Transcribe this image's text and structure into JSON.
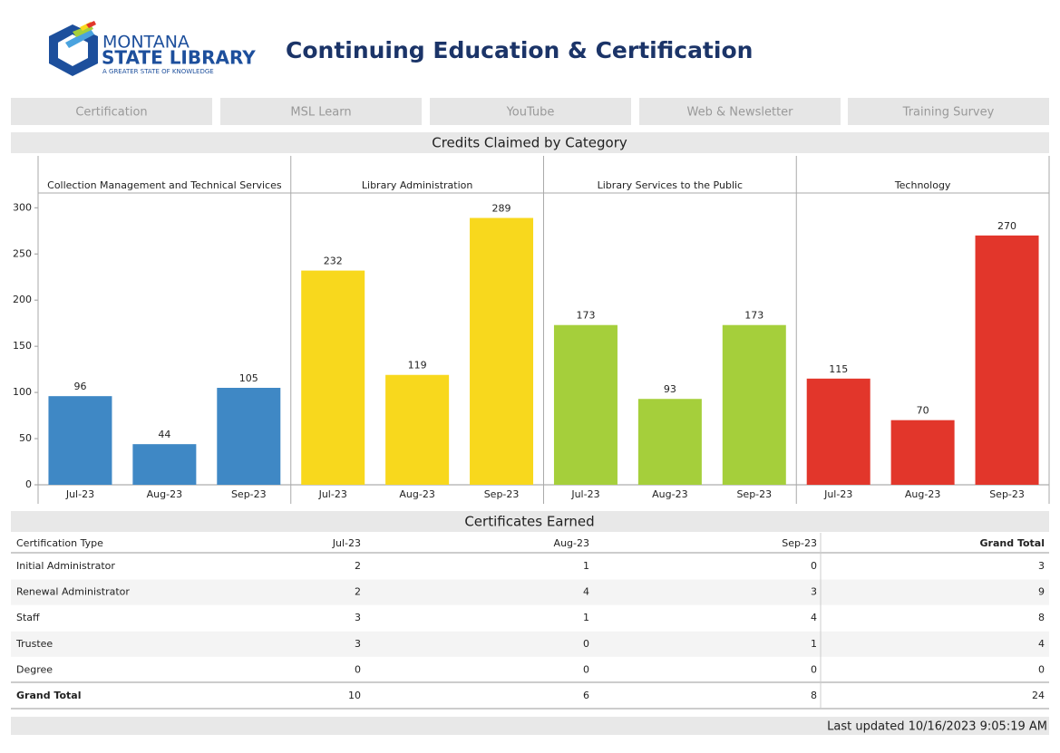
{
  "header": {
    "logo_line1": "MONTANA",
    "logo_line2": "STATE LIBRARY",
    "logo_tagline": "A GREATER STATE OF KNOWLEDGE",
    "title": "Continuing Education & Certification"
  },
  "nav": {
    "items": [
      "Certification",
      "MSL Learn",
      "YouTube",
      "Web & Newsletter",
      "Training Survey"
    ]
  },
  "chart_data": {
    "type": "bar",
    "title": "Credits Claimed by Category",
    "panels": [
      {
        "name": "Collection Management and Technical Services",
        "color": "#3f88c5",
        "categories": [
          "Jul-23",
          "Aug-23",
          "Sep-23"
        ],
        "values": [
          96,
          44,
          105
        ]
      },
      {
        "name": "Library Administration",
        "color": "#f8d81d",
        "categories": [
          "Jul-23",
          "Aug-23",
          "Sep-23"
        ],
        "values": [
          232,
          119,
          289
        ]
      },
      {
        "name": "Library Services to the Public",
        "color": "#a5cf3b",
        "categories": [
          "Jul-23",
          "Aug-23",
          "Sep-23"
        ],
        "values": [
          173,
          93,
          173
        ]
      },
      {
        "name": "Technology",
        "color": "#e2362b",
        "categories": [
          "Jul-23",
          "Aug-23",
          "Sep-23"
        ],
        "values": [
          115,
          70,
          270
        ]
      }
    ],
    "ylim": [
      0,
      316
    ],
    "yticks": [
      0,
      50,
      100,
      150,
      200,
      250,
      300
    ]
  },
  "table": {
    "title": "Certificates Earned",
    "header": [
      "Certification Type",
      "Jul-23",
      "Aug-23",
      "Sep-23",
      "Grand Total"
    ],
    "rows": [
      [
        "Initial Administrator",
        2,
        1,
        0,
        3
      ],
      [
        "Renewal Administrator",
        2,
        4,
        3,
        9
      ],
      [
        "Staff",
        3,
        1,
        4,
        8
      ],
      [
        "Trustee",
        3,
        0,
        1,
        4
      ],
      [
        "Degree",
        0,
        0,
        0,
        0
      ]
    ],
    "total": [
      "Grand Total",
      10,
      6,
      8,
      24
    ]
  },
  "footer": {
    "updated": "Last updated 10/16/2023 9:05:19 AM"
  }
}
